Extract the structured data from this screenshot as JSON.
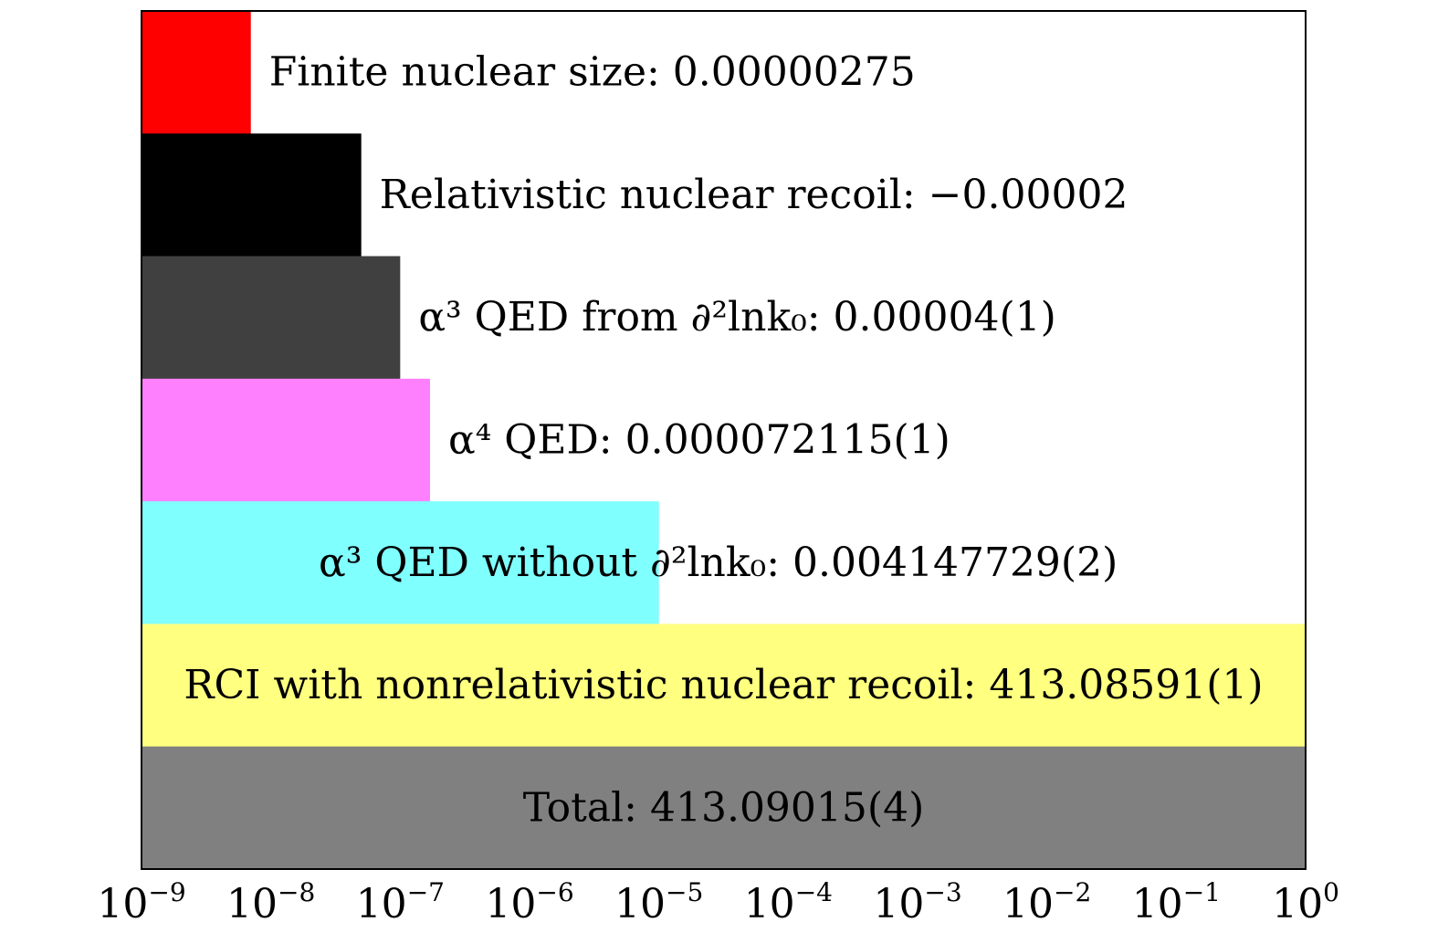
{
  "chart_data": {
    "type": "bar",
    "orientation": "horizontal",
    "x_scale": "log",
    "xlim": [
      1e-09,
      1
    ],
    "grid": false,
    "title": "",
    "xlabel": "",
    "ylabel": "",
    "categories": [
      "Finite nuclear size: 0.00000275",
      "Relativistic nuclear recoil: −0.00002",
      "α³ QED from ∂²lnk₀: 0.00004(1)",
      "α⁴ QED: 0.000072115(1)",
      "α³ QED without ∂²lnk₀: 0.004147729(2)",
      "RCI with nonrelativistic nuclear recoil: 413.08591(1)",
      "Total: 413.09015(4)"
    ],
    "values": [
      7e-09,
      5e-08,
      1e-07,
      1.7e-07,
      1e-05,
      1,
      1
    ],
    "colors": [
      "#ff0000",
      "#000000",
      "#404040",
      "#ff80ff",
      "#80ffff",
      "#ffff80",
      "#808080"
    ],
    "label_placement": [
      "right",
      "right",
      "right",
      "right",
      "center-bar-end",
      "center",
      "center"
    ],
    "x_ticks": [
      {
        "base": "10",
        "exp": "−9"
      },
      {
        "base": "10",
        "exp": "−8"
      },
      {
        "base": "10",
        "exp": "−7"
      },
      {
        "base": "10",
        "exp": "−6"
      },
      {
        "base": "10",
        "exp": "−5"
      },
      {
        "base": "10",
        "exp": "−4"
      },
      {
        "base": "10",
        "exp": "−3"
      },
      {
        "base": "10",
        "exp": "−2"
      },
      {
        "base": "10",
        "exp": "−1"
      },
      {
        "base": "10",
        "exp": "0"
      }
    ]
  }
}
